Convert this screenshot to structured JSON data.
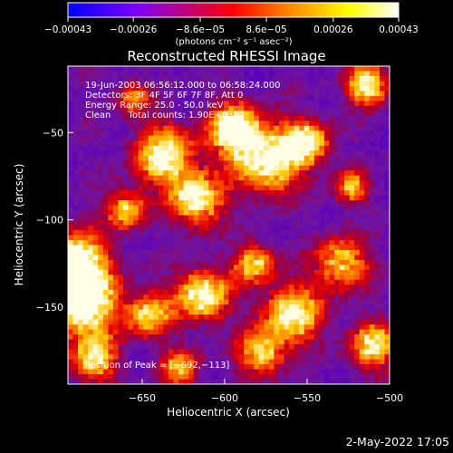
{
  "chart_data": {
    "type": "heatmap",
    "title": "Reconstructed RHESSI Image",
    "xlabel": "Heliocentric X (arcsec)",
    "ylabel": "Heliocentric Y (arcsec)",
    "xlim": [
      -695,
      -500
    ],
    "ylim": [
      -194,
      -12
    ],
    "x_ticks": [
      -650,
      -600,
      -550,
      -500
    ],
    "x_tick_labels": [
      "−650",
      "−600",
      "−550",
      "−500"
    ],
    "y_ticks": [
      -50,
      -100,
      -150
    ],
    "y_tick_labels": [
      "−50",
      "−100",
      "−150"
    ],
    "colorbar": {
      "range": [
        -0.00043,
        0.00043
      ],
      "ticks": [
        -0.00043,
        -0.00026,
        -8.6e-05,
        8.6e-05,
        0.00026,
        0.00043
      ],
      "tick_labels": [
        "−0.00043",
        "−0.00026",
        "−8.6e−05",
        "8.6e−05",
        "0.00026",
        "0.00043"
      ],
      "units_text": "(photons cm⁻² s⁻¹ asec⁻²)",
      "colors": [
        "#0000ff",
        "#7a00ff",
        "#ff0000",
        "#ff7a00",
        "#ffff00",
        "#ffffff"
      ]
    },
    "annotations": [
      "19-Jun-2003 06:56:12.000 to 06:58:24.000",
      "Detectors: 3F 4F 5F 6F 7F 8F, Att 0",
      "Energy Range: 25.0 - 50.0 keV",
      "Clean      Total counts: 1.90E+03"
    ],
    "peak_label": "Position of Peak = [−692,−113]",
    "peak": {
      "x": -692,
      "y": -113
    },
    "grid": false,
    "legend": "none"
  },
  "footer": {
    "date_time": "2-May-2022 17:05"
  }
}
